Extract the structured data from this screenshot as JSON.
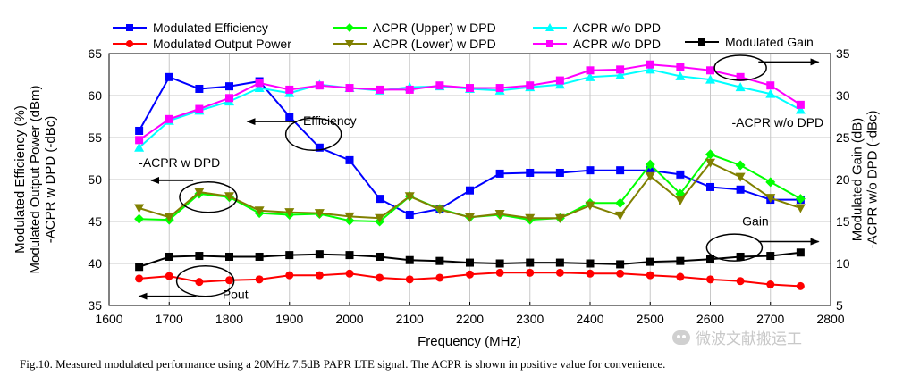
{
  "caption": "Fig.10. Measured modulated performance using a 20MHz 7.5dB PAPR LTE signal. The ACPR is shown in positive value for convenience.",
  "watermark": "微波文献搬运工",
  "chart_data": {
    "type": "line",
    "x": [
      1650,
      1700,
      1750,
      1800,
      1850,
      1900,
      1950,
      2000,
      2050,
      2100,
      2150,
      2200,
      2250,
      2300,
      2350,
      2400,
      2450,
      2500,
      2550,
      2600,
      2650,
      2700,
      2750
    ],
    "xlabel": "Frequency (MHz)",
    "ylabel_left": "Modulated Efficiency (%)\nModulated Output Power (dBm)\n-ACPR w DPD (-dBc)",
    "ylabel_right": "Modulated Gain (dB)\n-ACPR w/o DPD (-dBc)",
    "xlim": [
      1600,
      2800
    ],
    "xticks": [
      1600,
      1700,
      1800,
      1900,
      2000,
      2100,
      2200,
      2300,
      2400,
      2500,
      2600,
      2700,
      2800
    ],
    "ylim_left": [
      35,
      65
    ],
    "yticks_left": [
      35,
      40,
      45,
      50,
      55,
      60,
      65
    ],
    "ylim_right": [
      5,
      35
    ],
    "yticks_right": [
      5,
      10,
      15,
      20,
      25,
      30,
      35
    ],
    "grid": true,
    "series": [
      {
        "name": "Modulated Efficiency",
        "axis": "left",
        "color": "#0000ff",
        "marker": "square",
        "values": [
          55.8,
          62.2,
          60.8,
          61.1,
          61.7,
          57.5,
          53.8,
          52.3,
          47.7,
          45.8,
          46.5,
          48.7,
          50.7,
          50.8,
          50.8,
          51.1,
          51.1,
          51.1,
          50.6,
          49.1,
          48.8,
          47.6,
          47.6
        ]
      },
      {
        "name": "Modulated Output Power",
        "axis": "left",
        "color": "#ff0000",
        "marker": "circle",
        "values": [
          38.2,
          38.5,
          37.8,
          38.0,
          38.1,
          38.6,
          38.6,
          38.8,
          38.3,
          38.1,
          38.3,
          38.7,
          38.9,
          38.9,
          38.9,
          38.8,
          38.8,
          38.6,
          38.4,
          38.1,
          37.9,
          37.5,
          37.3
        ]
      },
      {
        "name": "ACPR (Upper) w DPD",
        "axis": "left",
        "color": "#00ff00",
        "marker": "diamond",
        "values": [
          45.3,
          45.2,
          48.3,
          47.9,
          46.0,
          45.8,
          45.9,
          45.1,
          45.0,
          48.0,
          46.5,
          45.5,
          45.8,
          45.2,
          45.4,
          47.2,
          47.2,
          51.8,
          48.3,
          53.0,
          51.7,
          49.7,
          47.7
        ]
      },
      {
        "name": "ACPR (Lower) w DPD",
        "axis": "left",
        "color": "#808000",
        "marker": "triangle-down",
        "values": [
          46.6,
          45.5,
          48.5,
          48.0,
          46.3,
          46.1,
          46.0,
          45.6,
          45.4,
          48.0,
          46.4,
          45.5,
          45.9,
          45.4,
          45.4,
          46.9,
          45.7,
          50.4,
          47.5,
          52.0,
          50.3,
          47.8,
          46.6
        ]
      },
      {
        "name": "ACPR w/o DPD",
        "axis": "right",
        "color": "#00ffff",
        "marker": "triangle-up",
        "values": [
          23.8,
          27.0,
          28.2,
          29.3,
          30.9,
          30.3,
          31.3,
          30.9,
          30.6,
          31.0,
          31.1,
          30.8,
          30.6,
          31.0,
          31.3,
          32.2,
          32.4,
          33.1,
          32.3,
          31.9,
          31.0,
          30.2,
          28.3
        ]
      },
      {
        "name": "ACPR w/o DPD",
        "axis": "right",
        "color": "#ff00ff",
        "marker": "square",
        "values": [
          24.7,
          27.2,
          28.4,
          29.7,
          31.5,
          30.7,
          31.2,
          30.9,
          30.7,
          30.7,
          31.2,
          30.9,
          30.9,
          31.2,
          31.8,
          33.0,
          33.1,
          33.7,
          33.4,
          33.0,
          32.2,
          31.2,
          28.9
        ]
      },
      {
        "name": "Modulated Gain",
        "axis": "right",
        "color": "#000000",
        "marker": "square",
        "values": [
          9.6,
          10.8,
          10.9,
          10.8,
          10.8,
          11.0,
          11.1,
          11.0,
          10.8,
          10.4,
          10.3,
          10.1,
          10.0,
          10.1,
          10.1,
          10.0,
          9.9,
          10.2,
          10.3,
          10.5,
          10.8,
          10.9,
          11.3
        ]
      }
    ],
    "annotations": [
      {
        "text": "Efficiency",
        "x": 1967,
        "y": 56.5
      },
      {
        "text": "-ACPR w DPD",
        "x": 1717,
        "y": 51.5
      },
      {
        "text": "Pout",
        "x": 1810,
        "y": 35.8
      },
      {
        "text": "-ACPR w/o DPD",
        "x": 2712,
        "y": 26.3
      },
      {
        "text": "Gain",
        "x": 2675,
        "y": 14.5
      }
    ]
  }
}
